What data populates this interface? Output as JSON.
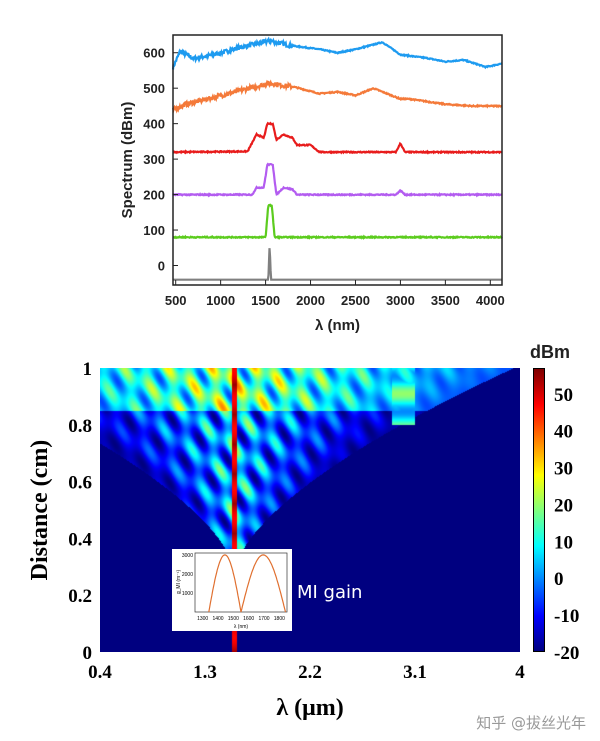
{
  "chart_data": [
    {
      "type": "line",
      "xlabel": "λ (nm)",
      "ylabel": "Spectrum (dBm)",
      "xlim": [
        470,
        4130
      ],
      "ylim": [
        -55,
        650
      ],
      "xticks": [
        "500",
        "1000",
        "1500",
        "2000",
        "2500",
        "3000",
        "3500",
        "4000"
      ],
      "yticks": [
        "0",
        "100",
        "200",
        "300",
        "400",
        "500",
        "600"
      ],
      "series": [
        {
          "color": "#1e9bf0",
          "points": [
            [
              470,
              560
            ],
            [
              550,
              605
            ],
            [
              700,
              585
            ],
            [
              1000,
              600
            ],
            [
              1200,
              615
            ],
            [
              1550,
              635
            ],
            [
              1800,
              620
            ],
            [
              2100,
              610
            ],
            [
              2300,
              600
            ],
            [
              2500,
              610
            ],
            [
              2800,
              630
            ],
            [
              3000,
              595
            ],
            [
              3300,
              585
            ],
            [
              3500,
              575
            ],
            [
              3700,
              580
            ],
            [
              3950,
              560
            ],
            [
              4130,
              570
            ]
          ]
        },
        {
          "color": "#f47a3a",
          "points": [
            [
              470,
              440
            ],
            [
              600,
              455
            ],
            [
              1000,
              480
            ],
            [
              1300,
              500
            ],
            [
              1550,
              515
            ],
            [
              1800,
              505
            ],
            [
              2100,
              485
            ],
            [
              2300,
              490
            ],
            [
              2500,
              480
            ],
            [
              2700,
              500
            ],
            [
              3000,
              470
            ],
            [
              3100,
              470
            ],
            [
              3500,
              455
            ],
            [
              3800,
              450
            ],
            [
              4130,
              450
            ]
          ]
        },
        {
          "color": "#e81c1c",
          "points": [
            [
              470,
              320
            ],
            [
              1300,
              322
            ],
            [
              1400,
              370
            ],
            [
              1480,
              360
            ],
            [
              1520,
              400
            ],
            [
              1580,
              400
            ],
            [
              1620,
              355
            ],
            [
              1700,
              370
            ],
            [
              1800,
              360
            ],
            [
              1850,
              340
            ],
            [
              2000,
              340
            ],
            [
              2100,
              320
            ],
            [
              2950,
              320
            ],
            [
              3000,
              345
            ],
            [
              3050,
              320
            ],
            [
              4130,
              320
            ]
          ]
        },
        {
          "color": "#b35cf0",
          "points": [
            [
              470,
              200
            ],
            [
              1350,
              200
            ],
            [
              1400,
              220
            ],
            [
              1480,
              220
            ],
            [
              1520,
              285
            ],
            [
              1580,
              285
            ],
            [
              1620,
              200
            ],
            [
              1700,
              220
            ],
            [
              1800,
              215
            ],
            [
              1850,
              200
            ],
            [
              2950,
              200
            ],
            [
              3000,
              212
            ],
            [
              3050,
              200
            ],
            [
              4130,
              200
            ]
          ]
        },
        {
          "color": "#5ccc1e",
          "points": [
            [
              470,
              80
            ],
            [
              1500,
              80
            ],
            [
              1530,
              170
            ],
            [
              1570,
              170
            ],
            [
              1600,
              80
            ],
            [
              4130,
              80
            ]
          ]
        },
        {
          "color": "#808080",
          "points": [
            [
              470,
              -40
            ],
            [
              1530,
              -40
            ],
            [
              1545,
              55
            ],
            [
              1560,
              -40
            ],
            [
              4130,
              -40
            ]
          ]
        }
      ]
    },
    {
      "type": "heatmap",
      "xlabel": "λ (μm)",
      "ylabel": "Distance (cm)",
      "xlim": [
        0.4,
        4
      ],
      "ylim": [
        0,
        1
      ],
      "xticks": [
        "0.4",
        "1.3",
        "2.2",
        "3.1",
        "4"
      ],
      "yticks": [
        "0",
        "0.2",
        "0.4",
        "0.6",
        "0.8",
        "1"
      ],
      "colorbar": {
        "label": "dBm",
        "range": [
          -20,
          57
        ],
        "ticks": [
          "-20",
          "-10",
          "0",
          "10",
          "20",
          "30",
          "40",
          "50"
        ],
        "colormap": "jet"
      }
    },
    {
      "type": "line",
      "title": "MI gain",
      "xlabel": "λ (nm)",
      "ylabel": "g_MI (m⁻¹)",
      "xlim": [
        1250,
        1850
      ],
      "ylim": [
        0,
        3100
      ],
      "xticks": [
        "1300",
        "1400",
        "1500",
        "1600",
        "1700",
        "1800"
      ],
      "yticks": [
        "1000",
        "2000",
        "3000"
      ],
      "color": "#e07030",
      "zeros": [
        1340,
        1550,
        1840
      ],
      "peaks": [
        [
          1400,
          3000
        ],
        [
          1750,
          3000
        ]
      ]
    }
  ],
  "watermark": "知乎 @拔丝光年"
}
